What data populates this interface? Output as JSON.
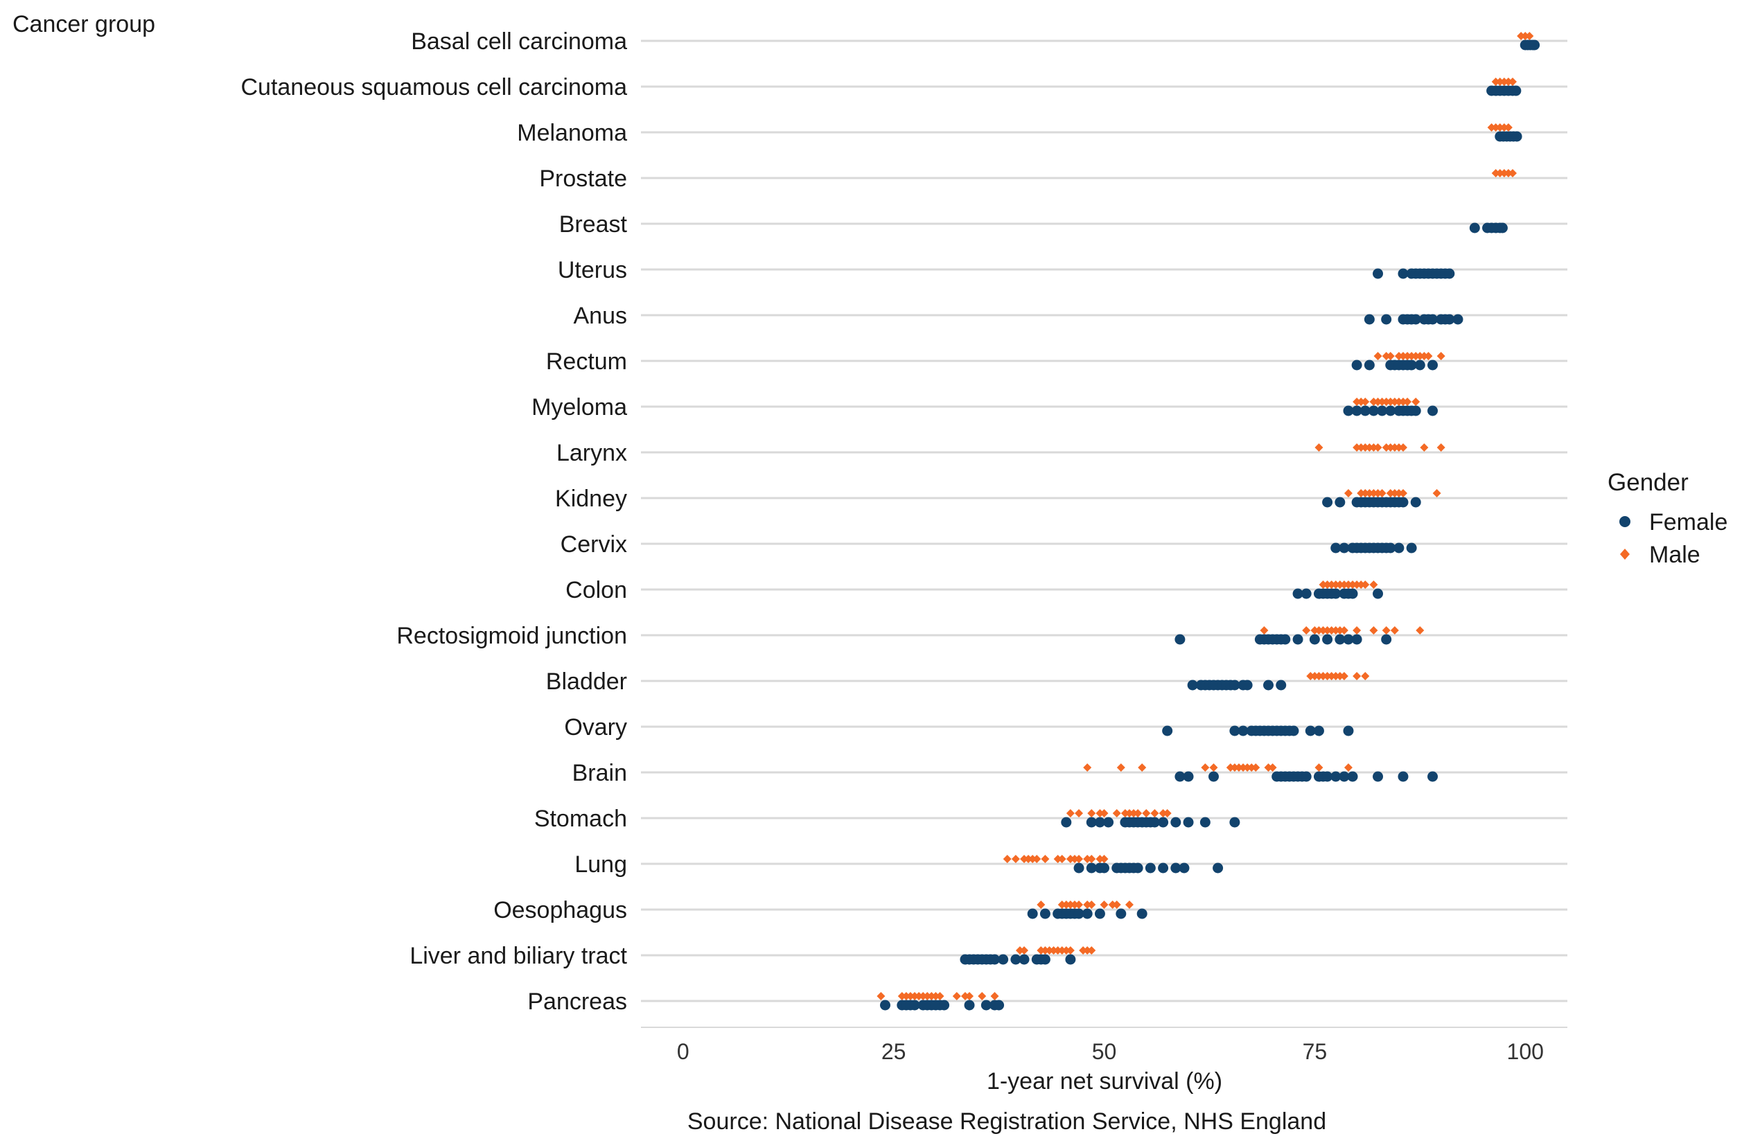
{
  "chart_data": {
    "type": "scatter",
    "y_axis_title": "Cancer group",
    "xlabel": "1-year net survival (%)",
    "caption": "Source: National Disease Registration Service, NHS England",
    "xlim": [
      -5,
      105
    ],
    "xticks": [
      0,
      25,
      50,
      75,
      100
    ],
    "legend": {
      "title": "Gender",
      "position": "right",
      "entries": [
        {
          "name": "Female",
          "color": "#12436D",
          "marker": "circle"
        },
        {
          "name": "Male",
          "color": "#F46A25",
          "marker": "diamond"
        }
      ]
    },
    "categories": [
      "Basal cell carcinoma",
      "Cutaneous squamous cell carcinoma",
      "Melanoma",
      "Prostate",
      "Breast",
      "Uterus",
      "Anus",
      "Rectum",
      "Myeloma",
      "Larynx",
      "Kidney",
      "Cervix",
      "Colon",
      "Rectosigmoid junction",
      "Bladder",
      "Ovary",
      "Brain",
      "Stomach",
      "Lung",
      "Oesophagus",
      "Liver and biliary tract",
      "Pancreas"
    ],
    "series": [
      {
        "name": "Female",
        "values": [
          [
            100.0,
            100.3,
            100.6,
            100.9,
            101.1
          ],
          [
            96.0,
            96.5,
            97.0,
            97.5,
            98.0,
            98.5,
            98.9
          ],
          [
            97.0,
            97.4,
            97.8,
            98.2,
            98.6,
            99.0
          ],
          [],
          [
            94.0,
            95.5,
            96.0,
            96.5,
            97.0,
            97.3
          ],
          [
            82.5,
            85.5,
            86.5,
            87.0,
            87.5,
            88.0,
            88.5,
            89.0,
            89.5,
            90.0,
            90.5,
            91.0
          ],
          [
            81.5,
            83.5,
            85.5,
            86.0,
            86.5,
            87.0,
            88.0,
            88.5,
            89.0,
            90.0,
            90.5,
            91.0,
            92.0
          ],
          [
            80.0,
            81.5,
            84.0,
            84.5,
            85.0,
            85.5,
            86.0,
            86.5,
            87.5,
            89.0
          ],
          [
            79.0,
            80.0,
            81.0,
            82.0,
            83.0,
            84.0,
            85.0,
            85.5,
            86.0,
            86.5,
            87.0,
            89.0
          ],
          [],
          [
            76.5,
            78.0,
            80.0,
            80.5,
            81.0,
            81.5,
            82.0,
            82.5,
            83.0,
            83.5,
            84.0,
            84.5,
            85.0,
            85.5,
            87.0
          ],
          [
            77.5,
            78.5,
            79.5,
            80.0,
            80.5,
            81.0,
            81.5,
            82.0,
            82.5,
            83.0,
            83.5,
            84.0,
            85.0,
            86.5
          ],
          [
            73.0,
            74.0,
            75.5,
            76.0,
            76.5,
            77.0,
            77.5,
            78.5,
            79.0,
            79.5,
            82.5
          ],
          [
            59.0,
            68.5,
            69.0,
            69.5,
            70.0,
            70.5,
            71.0,
            71.5,
            73.0,
            75.0,
            76.5,
            78.0,
            79.0,
            80.0,
            83.5
          ],
          [
            60.5,
            61.5,
            62.0,
            62.5,
            63.0,
            63.5,
            64.0,
            64.5,
            65.0,
            65.5,
            66.5,
            67.0,
            69.5,
            71.0
          ],
          [
            57.5,
            65.5,
            66.5,
            67.5,
            68.0,
            68.5,
            69.0,
            69.5,
            70.0,
            70.5,
            71.0,
            71.5,
            72.0,
            72.5,
            74.5,
            75.5,
            79.0
          ],
          [
            59.0,
            60.0,
            63.0,
            70.5,
            71.0,
            71.5,
            72.0,
            72.5,
            73.0,
            73.5,
            74.0,
            75.5,
            76.0,
            76.5,
            77.5,
            78.5,
            79.5,
            82.5,
            85.5,
            89.0
          ],
          [
            45.5,
            48.5,
            49.5,
            50.5,
            52.5,
            53.0,
            53.5,
            54.0,
            54.5,
            55.0,
            55.5,
            56.0,
            57.0,
            58.5,
            60.0,
            62.0,
            65.5
          ],
          [
            47.0,
            48.5,
            49.5,
            50.0,
            51.5,
            52.0,
            52.5,
            53.0,
            53.5,
            54.0,
            55.5,
            57.0,
            58.5,
            59.5,
            63.5
          ],
          [
            41.5,
            43.0,
            44.5,
            45.0,
            45.5,
            46.0,
            46.5,
            47.0,
            48.0,
            49.5,
            52.0,
            54.5
          ],
          [
            33.5,
            34.0,
            34.5,
            35.0,
            35.5,
            36.0,
            36.5,
            37.0,
            38.0,
            39.5,
            40.5,
            42.0,
            42.5,
            43.0,
            46.0
          ],
          [
            24.0,
            26.0,
            26.5,
            27.0,
            27.5,
            28.5,
            29.0,
            29.5,
            30.0,
            30.5,
            31.0,
            34.0,
            36.0,
            37.0,
            37.5
          ]
        ]
      },
      {
        "name": "Male",
        "values": [
          [
            99.5,
            100.0,
            100.5
          ],
          [
            96.5,
            97.0,
            97.5,
            98.0,
            98.5
          ],
          [
            96.0,
            96.5,
            97.0,
            97.5,
            98.0
          ],
          [
            96.5,
            97.0,
            97.5,
            98.0,
            98.5
          ],
          [],
          [],
          [],
          [
            82.5,
            83.5,
            84.0,
            85.0,
            85.5,
            86.0,
            86.5,
            87.0,
            87.5,
            88.0,
            88.5,
            90.0
          ],
          [
            80.0,
            80.5,
            81.0,
            82.0,
            82.5,
            83.0,
            83.5,
            84.0,
            84.5,
            85.0,
            85.5,
            86.0,
            87.0
          ],
          [
            75.5,
            80.0,
            80.5,
            81.0,
            81.5,
            82.0,
            82.5,
            83.5,
            84.0,
            84.5,
            85.0,
            85.5,
            88.0,
            90.0
          ],
          [
            79.0,
            80.5,
            81.0,
            81.5,
            82.0,
            82.5,
            83.0,
            84.0,
            84.5,
            85.0,
            85.5,
            89.5
          ],
          [],
          [
            76.0,
            76.5,
            77.0,
            77.5,
            78.0,
            78.5,
            79.0,
            79.5,
            80.0,
            80.5,
            81.0,
            82.0
          ],
          [
            69.0,
            74.0,
            75.0,
            75.5,
            76.0,
            76.5,
            77.0,
            77.5,
            78.0,
            78.5,
            80.0,
            82.0,
            83.5,
            84.5,
            87.5
          ],
          [
            74.5,
            75.0,
            75.5,
            76.0,
            76.5,
            77.0,
            77.5,
            78.0,
            78.5,
            80.0,
            81.0
          ],
          [],
          [
            48.0,
            52.0,
            54.5,
            62.0,
            63.0,
            65.0,
            65.5,
            66.0,
            66.5,
            67.0,
            67.5,
            68.0,
            69.5,
            70.0,
            75.5,
            79.0
          ],
          [
            46.0,
            47.0,
            48.5,
            49.5,
            50.0,
            51.5,
            52.5,
            53.0,
            53.5,
            54.0,
            55.0,
            56.0,
            57.0,
            57.5
          ],
          [
            38.5,
            39.5,
            40.5,
            41.0,
            41.5,
            42.0,
            43.0,
            44.5,
            45.0,
            46.0,
            46.5,
            47.0,
            48.0,
            48.5,
            49.5,
            50.0
          ],
          [
            42.5,
            45.0,
            45.5,
            46.0,
            46.5,
            47.0,
            48.0,
            48.5,
            50.0,
            51.0,
            51.5,
            53.0
          ],
          [
            40.0,
            40.5,
            42.5,
            43.0,
            43.5,
            44.0,
            44.5,
            45.0,
            45.5,
            46.0,
            47.5,
            48.0,
            48.5
          ],
          [
            23.5,
            26.0,
            26.5,
            27.0,
            27.5,
            28.0,
            28.5,
            29.0,
            29.5,
            30.0,
            30.5,
            32.5,
            33.5,
            34.0,
            35.5,
            37.0
          ]
        ]
      }
    ],
    "grid": {
      "horizontal": true,
      "vertical": false
    }
  }
}
